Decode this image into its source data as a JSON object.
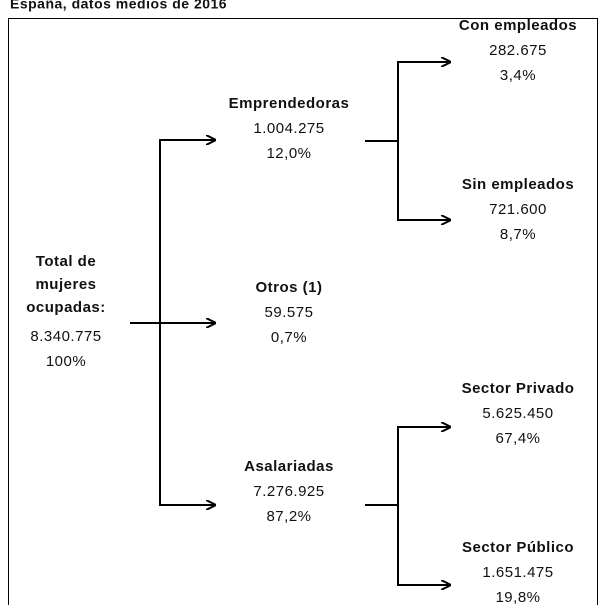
{
  "title": "España, datos medios de 2016",
  "nodes": [
    {
      "label": [
        "Total de",
        "mujeres",
        "ocupadas:"
      ],
      "value": "8.340.775",
      "percent": "100%"
    },
    {
      "label": [
        "Emprendedoras"
      ],
      "value": "1.004.275",
      "percent": "12,0%"
    },
    {
      "label": [
        "Otros (1)"
      ],
      "value": "59.575",
      "percent": "0,7%"
    },
    {
      "label": [
        "Asalariadas"
      ],
      "value": "7.276.925",
      "percent": "87,2%"
    },
    {
      "label": [
        "Con empleados"
      ],
      "value": "282.675",
      "percent": "3,4%"
    },
    {
      "label": [
        "Sin empleados"
      ],
      "value": "721.600",
      "percent": "8,7%"
    },
    {
      "label": [
        "Sector Privado"
      ],
      "value": "5.625.450",
      "percent": "67,4%"
    },
    {
      "label": [
        "Sector Público"
      ],
      "value": "1.651.475",
      "percent": "19,8%"
    }
  ]
}
